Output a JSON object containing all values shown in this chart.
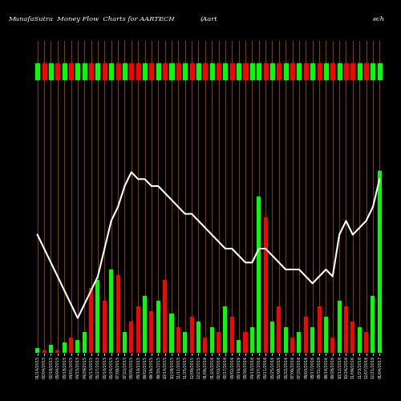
{
  "title": "MunafaSutra  Money Flow  Charts for AARTECH",
  "title_right1": "(Aart",
  "title_right2": "ech",
  "background_color": "#000000",
  "bar_line_color": "#8B4500",
  "line_color": "#ffffff",
  "green_color": "#00ff00",
  "red_color": "#ff0000",
  "orange_vline_color": "#8B4500",
  "categories": [
    "01/14/2015",
    "02/04/2015",
    "02/18/2015",
    "03/04/2015",
    "03/18/2015",
    "04/01/2015",
    "04/15/2015",
    "04/29/2015",
    "05/13/2015",
    "05/27/2015",
    "06/10/2015",
    "06/24/2015",
    "07/08/2015",
    "07/22/2015",
    "08/05/2015",
    "08/19/2015",
    "09/02/2015",
    "09/16/2015",
    "09/30/2015",
    "10/14/2015",
    "10/28/2015",
    "11/11/2015",
    "11/25/2015",
    "12/09/2015",
    "12/23/2015",
    "01/06/2016",
    "01/20/2016",
    "02/03/2016",
    "02/17/2016",
    "03/02/2016",
    "03/16/2016",
    "03/30/2016",
    "04/13/2016",
    "04/27/2016",
    "05/11/2016",
    "05/25/2016",
    "06/08/2016",
    "06/22/2016",
    "07/06/2016",
    "07/20/2016",
    "08/03/2016",
    "08/17/2016",
    "08/31/2016",
    "09/14/2016",
    "09/28/2016",
    "10/12/2016",
    "10/26/2016",
    "11/09/2016",
    "11/23/2016",
    "12/07/2016",
    "12/21/2016",
    "01/04/2017"
  ],
  "bar_values": [
    2,
    1,
    3,
    1,
    4,
    6,
    5,
    8,
    25,
    28,
    20,
    32,
    30,
    8,
    12,
    18,
    22,
    16,
    20,
    28,
    15,
    10,
    8,
    14,
    12,
    6,
    10,
    8,
    18,
    14,
    5,
    8,
    10,
    60,
    52,
    12,
    18,
    10,
    6,
    8,
    14,
    10,
    18,
    14,
    6,
    20,
    18,
    12,
    10,
    8,
    22,
    70
  ],
  "bar_colors": [
    "green",
    "red",
    "green",
    "red",
    "green",
    "red",
    "green",
    "green",
    "red",
    "green",
    "red",
    "green",
    "red",
    "green",
    "red",
    "red",
    "green",
    "red",
    "green",
    "red",
    "green",
    "red",
    "green",
    "red",
    "green",
    "red",
    "green",
    "red",
    "green",
    "red",
    "green",
    "red",
    "green",
    "green",
    "red",
    "green",
    "red",
    "green",
    "red",
    "green",
    "red",
    "green",
    "red",
    "green",
    "red",
    "green",
    "red",
    "red",
    "green",
    "red",
    "green",
    "green"
  ],
  "line_values": [
    72,
    70,
    68,
    66,
    64,
    62,
    60,
    62,
    64,
    66,
    70,
    74,
    76,
    79,
    81,
    80,
    80,
    79,
    79,
    78,
    77,
    76,
    75,
    75,
    74,
    73,
    72,
    71,
    70,
    70,
    69,
    68,
    68,
    70,
    70,
    69,
    68,
    67,
    67,
    67,
    66,
    65,
    66,
    67,
    66,
    72,
    74,
    72,
    73,
    74,
    76,
    80
  ],
  "ylim_bar": [
    0,
    100
  ],
  "ylim_line": [
    55,
    90
  ],
  "top_markers_green": [
    1,
    1,
    1,
    1,
    1,
    1,
    1,
    1,
    1,
    1,
    1,
    1,
    1,
    1,
    1,
    1,
    1,
    1,
    1,
    1,
    1,
    1,
    1,
    1,
    1,
    1,
    1,
    1,
    1,
    1,
    1,
    1,
    1,
    1,
    1,
    1,
    1,
    1,
    1,
    1,
    1,
    1,
    1,
    1,
    1,
    1,
    1,
    1,
    1,
    1,
    1,
    1
  ],
  "top_markers_red": [
    1,
    1,
    1,
    1,
    1,
    1,
    1,
    1,
    1,
    1,
    1,
    1,
    1,
    1,
    1,
    1,
    1,
    1,
    1,
    1,
    1,
    1,
    1,
    1,
    1,
    1,
    1,
    1,
    1,
    1,
    1,
    1,
    1,
    1,
    1,
    1,
    1,
    1,
    1,
    1,
    1,
    1,
    1,
    1,
    1,
    1,
    1,
    1,
    1,
    1,
    1,
    1
  ]
}
